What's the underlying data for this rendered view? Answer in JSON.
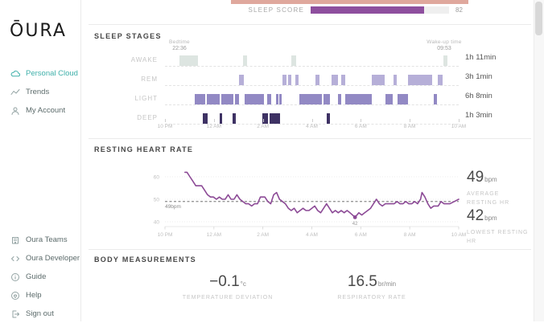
{
  "app": {
    "logo": "ŌURA"
  },
  "sidebar": {
    "nav": [
      {
        "label": "Personal Cloud",
        "icon": "cloud-icon",
        "active": true
      },
      {
        "label": "Trends",
        "icon": "trends-icon",
        "active": false
      },
      {
        "label": "My Account",
        "icon": "account-icon",
        "active": false
      }
    ],
    "footer_nav": [
      {
        "label": "Oura Teams",
        "icon": "teams-icon"
      },
      {
        "label": "Oura Developer",
        "icon": "developer-icon"
      },
      {
        "label": "Guide",
        "icon": "guide-icon"
      },
      {
        "label": "Help",
        "icon": "help-icon"
      },
      {
        "label": "Sign out",
        "icon": "signout-icon"
      }
    ]
  },
  "header": {
    "sleep_score_label": "SLEEP SCORE",
    "sleep_score_value": "82",
    "sleep_score_percent": 82,
    "score_bar_color": "#8e4f9e",
    "partial_bar_color": "#dfa89d"
  },
  "sleep_stages": {
    "title": "SLEEP STAGES",
    "bedtime_label": "Bedtime",
    "bedtime_value": "22:36",
    "wakeup_label": "Wake-up time",
    "wakeup_value": "09:53",
    "x_ticks": [
      "10 PM",
      "12 AM",
      "2 AM",
      "4 AM",
      "6 AM",
      "8 AM",
      "10 AM"
    ],
    "rows": [
      {
        "label": "AWAKE",
        "duration": "1h 11min",
        "color": "#dde5e1",
        "segments": [
          [
            0.049,
            0.112
          ],
          [
            0.266,
            0.279
          ],
          [
            0.431,
            0.447
          ],
          [
            0.949,
            0.963
          ]
        ]
      },
      {
        "label": "REM",
        "duration": "3h 1min",
        "color": "#b6afd8",
        "segments": [
          [
            0.253,
            0.268
          ],
          [
            0.4,
            0.414
          ],
          [
            0.419,
            0.43
          ],
          [
            0.444,
            0.456
          ],
          [
            0.512,
            0.525
          ],
          [
            0.568,
            0.588
          ],
          [
            0.6,
            0.613
          ],
          [
            0.705,
            0.748
          ],
          [
            0.778,
            0.79
          ],
          [
            0.828,
            0.91
          ],
          [
            0.93,
            0.944
          ]
        ]
      },
      {
        "label": "LIGHT",
        "duration": "6h 8min",
        "color": "#9289c4",
        "segments": [
          [
            0.102,
            0.137
          ],
          [
            0.143,
            0.186
          ],
          [
            0.192,
            0.233
          ],
          [
            0.238,
            0.251
          ],
          [
            0.272,
            0.336
          ],
          [
            0.349,
            0.361
          ],
          [
            0.379,
            0.386
          ],
          [
            0.39,
            0.398
          ],
          [
            0.458,
            0.534
          ],
          [
            0.54,
            0.562
          ],
          [
            0.59,
            0.6
          ],
          [
            0.615,
            0.705
          ],
          [
            0.751,
            0.775
          ],
          [
            0.792,
            0.828
          ],
          [
            0.916,
            0.927
          ]
        ]
      },
      {
        "label": "DEEP",
        "duration": "1h 3min",
        "color": "#3e3264",
        "segments": [
          [
            0.13,
            0.145
          ],
          [
            0.185,
            0.194
          ],
          [
            0.231,
            0.24
          ],
          [
            0.332,
            0.351
          ],
          [
            0.356,
            0.393
          ],
          [
            0.552,
            0.562
          ]
        ]
      }
    ]
  },
  "heart_rate": {
    "title": "RESTING HEART RATE",
    "type": "line",
    "line_color": "#8c4a96",
    "y_ticks": [
      60,
      50,
      40
    ],
    "x_ticks": [
      "10 PM",
      "12 AM",
      "2 AM",
      "4 AM",
      "6 AM",
      "8 AM",
      "10 AM"
    ],
    "average_line": {
      "value": 49,
      "label": "49bpm"
    },
    "lowest_point": {
      "frac": 0.647,
      "value": 42,
      "label": "42"
    },
    "points": [
      [
        0.068,
        62
      ],
      [
        0.075,
        62
      ],
      [
        0.085,
        60
      ],
      [
        0.095,
        58
      ],
      [
        0.105,
        56
      ],
      [
        0.115,
        56
      ],
      [
        0.125,
        56
      ],
      [
        0.135,
        54
      ],
      [
        0.145,
        52
      ],
      [
        0.155,
        51
      ],
      [
        0.165,
        51
      ],
      [
        0.175,
        50
      ],
      [
        0.185,
        51
      ],
      [
        0.195,
        50
      ],
      [
        0.205,
        50
      ],
      [
        0.215,
        52
      ],
      [
        0.225,
        50
      ],
      [
        0.235,
        50
      ],
      [
        0.245,
        52
      ],
      [
        0.255,
        50
      ],
      [
        0.265,
        49
      ],
      [
        0.275,
        48
      ],
      [
        0.285,
        48
      ],
      [
        0.295,
        47
      ],
      [
        0.305,
        48
      ],
      [
        0.315,
        48
      ],
      [
        0.325,
        51
      ],
      [
        0.34,
        51
      ],
      [
        0.35,
        49
      ],
      [
        0.36,
        48
      ],
      [
        0.37,
        52
      ],
      [
        0.38,
        53
      ],
      [
        0.39,
        50
      ],
      [
        0.4,
        49
      ],
      [
        0.41,
        48
      ],
      [
        0.42,
        46
      ],
      [
        0.43,
        45
      ],
      [
        0.44,
        46
      ],
      [
        0.45,
        44
      ],
      [
        0.46,
        45
      ],
      [
        0.47,
        46
      ],
      [
        0.48,
        45
      ],
      [
        0.49,
        45
      ],
      [
        0.5,
        46
      ],
      [
        0.51,
        47
      ],
      [
        0.52,
        45
      ],
      [
        0.53,
        44
      ],
      [
        0.55,
        48
      ],
      [
        0.56,
        46
      ],
      [
        0.57,
        44
      ],
      [
        0.58,
        45
      ],
      [
        0.59,
        44
      ],
      [
        0.6,
        45
      ],
      [
        0.61,
        44
      ],
      [
        0.62,
        45
      ],
      [
        0.63,
        44
      ],
      [
        0.647,
        42
      ],
      [
        0.66,
        44
      ],
      [
        0.67,
        43
      ],
      [
        0.68,
        44
      ],
      [
        0.69,
        45
      ],
      [
        0.7,
        46
      ],
      [
        0.71,
        48
      ],
      [
        0.72,
        50
      ],
      [
        0.73,
        48
      ],
      [
        0.74,
        47
      ],
      [
        0.75,
        48
      ],
      [
        0.76,
        48
      ],
      [
        0.78,
        48
      ],
      [
        0.79,
        49
      ],
      [
        0.8,
        48
      ],
      [
        0.81,
        48
      ],
      [
        0.82,
        49
      ],
      [
        0.83,
        48
      ],
      [
        0.84,
        48
      ],
      [
        0.85,
        49
      ],
      [
        0.86,
        48
      ],
      [
        0.87,
        50
      ],
      [
        0.875,
        53
      ],
      [
        0.885,
        51
      ],
      [
        0.895,
        48
      ],
      [
        0.905,
        46
      ],
      [
        0.915,
        47
      ],
      [
        0.93,
        47
      ],
      [
        0.94,
        49
      ],
      [
        0.95,
        48
      ],
      [
        0.97,
        48
      ],
      [
        0.985,
        49
      ],
      [
        1.0,
        50
      ]
    ],
    "stats": [
      {
        "value": "49",
        "unit": "bpm",
        "caption": "AVERAGE RESTING HR"
      },
      {
        "value": "42",
        "unit": "bpm",
        "caption": "LOWEST RESTING HR"
      }
    ]
  },
  "body_measurements": {
    "title": "BODY MEASUREMENTS",
    "stats": [
      {
        "value": "−0.1",
        "unit": "°c",
        "caption": "TEMPERATURE DEVIATION"
      },
      {
        "value": "16.5",
        "unit": "br/min",
        "caption": "RESPIRATORY RATE"
      }
    ]
  }
}
